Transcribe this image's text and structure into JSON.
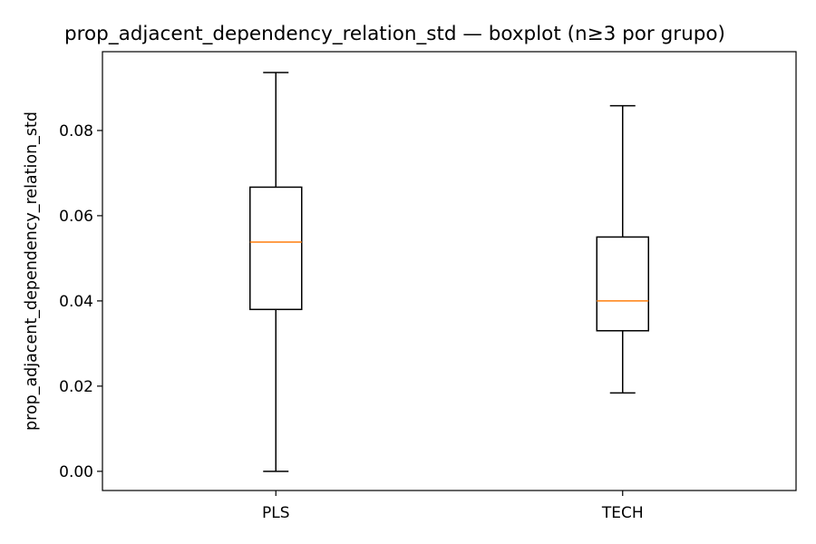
{
  "chart_data": {
    "type": "boxplot",
    "title": "prop_adjacent_dependency_relation_std — boxplot (n≥3 por grupo)",
    "xlabel": "",
    "ylabel": "prop_adjacent_dependency_relation_std",
    "ylim": [
      -0.0045,
      0.0985
    ],
    "yticks": [
      0.0,
      0.02,
      0.04,
      0.06,
      0.08
    ],
    "ytick_labels": [
      "0.00",
      "0.02",
      "0.04",
      "0.06",
      "0.08"
    ],
    "categories": [
      "PLS",
      "TECH"
    ],
    "boxes": [
      {
        "label": "PLS",
        "whislo": 0.0,
        "q1": 0.038,
        "med": 0.0538,
        "q3": 0.0667,
        "whishi": 0.0936
      },
      {
        "label": "TECH",
        "whislo": 0.0184,
        "q1": 0.033,
        "med": 0.04,
        "q3": 0.055,
        "whishi": 0.0858
      }
    ],
    "box_color": "#000000",
    "median_color": "#ff7f0e",
    "grid": false,
    "legend": "none"
  }
}
